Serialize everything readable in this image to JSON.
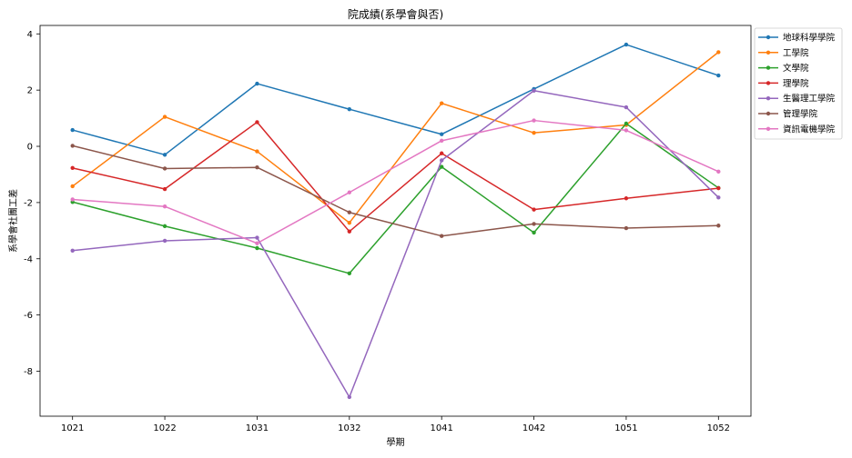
{
  "chart_data": {
    "type": "line",
    "title": "院成績(系學會與否)",
    "xlabel": "學期",
    "ylabel": "系學會社團工差",
    "categories": [
      "1021",
      "1022",
      "1031",
      "1032",
      "1041",
      "1042",
      "1051",
      "1052"
    ],
    "ylim": [
      -9.6,
      4.3
    ],
    "yticks": [
      4,
      2,
      0,
      -2,
      -4,
      -6,
      -8
    ],
    "grid": false,
    "legend_position": "outside-top-right",
    "series": [
      {
        "name": "地球科學學院",
        "color": "#1f77b4",
        "values": [
          0.58,
          -0.3,
          2.23,
          1.32,
          0.43,
          2.04,
          3.62,
          2.52
        ]
      },
      {
        "name": "工學院",
        "color": "#ff7f0e",
        "values": [
          -1.42,
          1.05,
          -0.18,
          -2.72,
          1.53,
          0.48,
          0.76,
          3.35
        ]
      },
      {
        "name": "文學院",
        "color": "#2ca02c",
        "values": [
          -1.98,
          -2.84,
          -3.62,
          -4.52,
          -0.73,
          -3.07,
          0.81,
          -1.48
        ]
      },
      {
        "name": "理學院",
        "color": "#d62728",
        "values": [
          -0.77,
          -1.52,
          0.86,
          -3.03,
          -0.25,
          -2.25,
          -1.85,
          -1.49
        ]
      },
      {
        "name": "生醫理工學院",
        "color": "#9467bd",
        "values": [
          -3.71,
          -3.36,
          -3.25,
          -8.92,
          -0.5,
          1.98,
          1.39,
          -1.82
        ]
      },
      {
        "name": "管理學院",
        "color": "#8c564b",
        "values": [
          0.02,
          -0.79,
          -0.75,
          -2.35,
          -3.19,
          -2.76,
          -2.91,
          -2.82
        ]
      },
      {
        "name": "資訊電機學院",
        "color": "#e377c2",
        "values": [
          -1.89,
          -2.14,
          -3.45,
          -1.64,
          0.2,
          0.92,
          0.57,
          -0.9
        ]
      }
    ]
  }
}
